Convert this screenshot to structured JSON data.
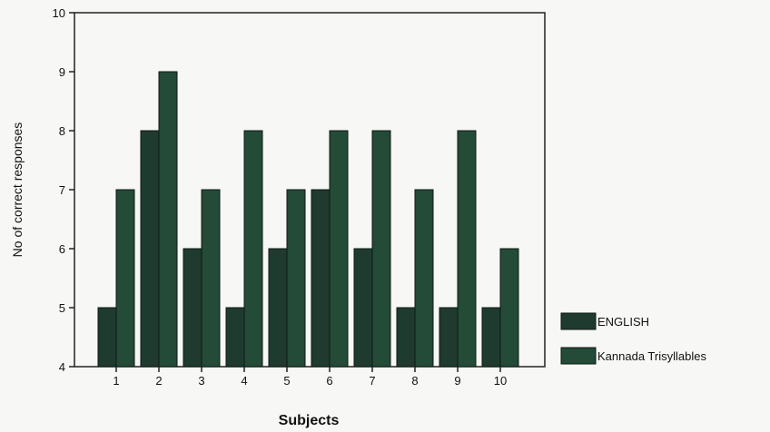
{
  "chart_data": {
    "type": "bar",
    "categories": [
      "1",
      "2",
      "3",
      "4",
      "5",
      "6",
      "7",
      "8",
      "9",
      "10"
    ],
    "series": [
      {
        "name": "ENGLISH",
        "values": [
          5,
          8,
          6,
          5,
          6,
          7,
          6,
          5,
          5,
          5
        ],
        "color": "#1f3a2e"
      },
      {
        "name": "Kannada Trisyllables",
        "values": [
          7,
          9,
          7,
          8,
          7,
          8,
          8,
          7,
          8,
          6
        ],
        "color": "#244a38"
      }
    ],
    "title": "",
    "xlabel": "Subjects",
    "ylabel": "No of correct responses",
    "ylim": [
      4,
      10
    ],
    "yticks": [
      "4",
      "5",
      "6",
      "7",
      "8",
      "9",
      "10"
    ],
    "grid": false,
    "legend_position": "right"
  }
}
